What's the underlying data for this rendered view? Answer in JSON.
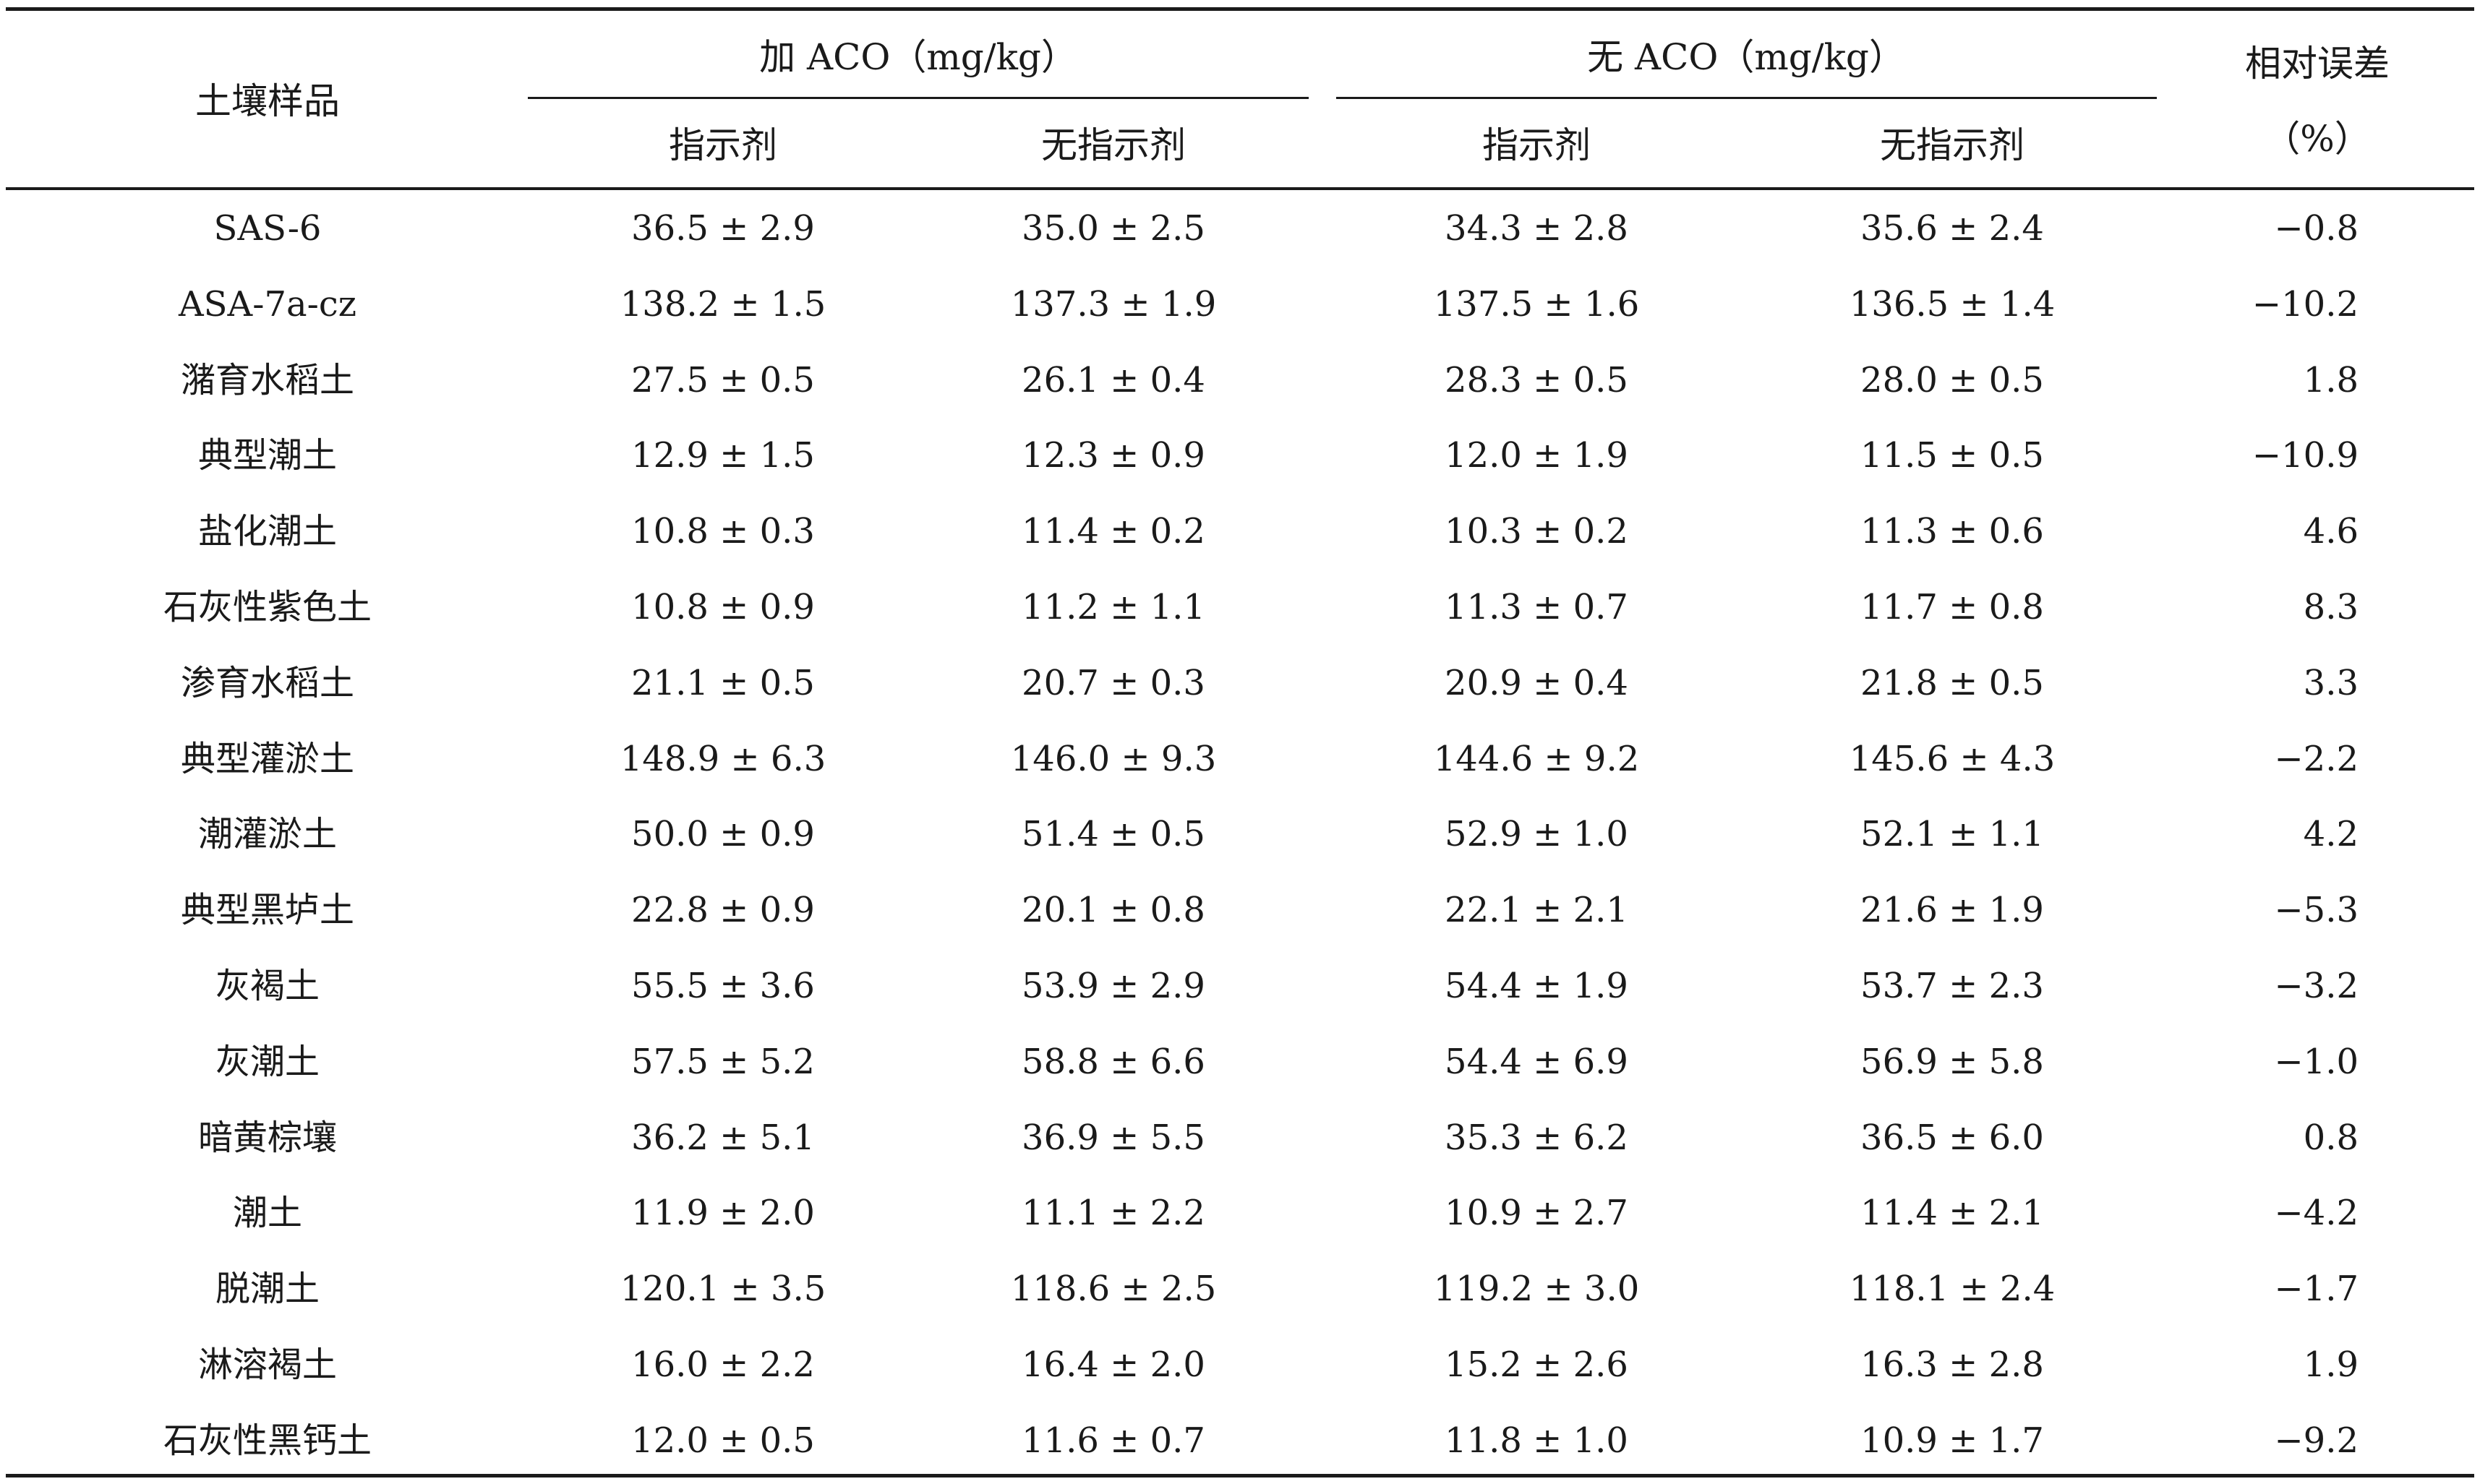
{
  "table": {
    "header": {
      "sample_col": "土壤样品",
      "group_with_aco": "加 ACO（mg/kg）",
      "group_without_aco": "无 ACO（mg/kg）",
      "sub_indicator": "指示剂",
      "sub_no_indicator": "无指示剂",
      "relative_error_line1": "相对误差",
      "relative_error_line2": "（%）"
    },
    "rows": [
      {
        "name": "SAS-6",
        "a_ind": "36.5 ± 2.9",
        "a_no": "35.0 ± 2.5",
        "b_ind": "34.3 ± 2.8",
        "b_no": "35.6 ± 2.4",
        "err": "−0.8"
      },
      {
        "name": "ASA-7a-cz",
        "a_ind": "138.2 ± 1.5",
        "a_no": "137.3 ± 1.9",
        "b_ind": "137.5 ± 1.6",
        "b_no": "136.5 ± 1.4",
        "err": "−10.2"
      },
      {
        "name": "潴育水稻土",
        "a_ind": "27.5 ± 0.5",
        "a_no": "26.1 ± 0.4",
        "b_ind": "28.3 ± 0.5",
        "b_no": "28.0 ± 0.5",
        "err": "1.8"
      },
      {
        "name": "典型潮土",
        "a_ind": "12.9 ± 1.5",
        "a_no": "12.3 ± 0.9",
        "b_ind": "12.0 ± 1.9",
        "b_no": "11.5 ± 0.5",
        "err": "−10.9"
      },
      {
        "name": "盐化潮土",
        "a_ind": "10.8 ± 0.3",
        "a_no": "11.4 ± 0.2",
        "b_ind": "10.3 ± 0.2",
        "b_no": "11.3 ± 0.6",
        "err": "4.6"
      },
      {
        "name": "石灰性紫色土",
        "a_ind": "10.8 ± 0.9",
        "a_no": "11.2 ± 1.1",
        "b_ind": "11.3 ± 0.7",
        "b_no": "11.7 ± 0.8",
        "err": "8.3"
      },
      {
        "name": "渗育水稻土",
        "a_ind": "21.1 ± 0.5",
        "a_no": "20.7 ± 0.3",
        "b_ind": "20.9 ± 0.4",
        "b_no": "21.8 ± 0.5",
        "err": "3.3"
      },
      {
        "name": "典型灌淤土",
        "a_ind": "148.9 ± 6.3",
        "a_no": "146.0 ± 9.3",
        "b_ind": "144.6 ± 9.2",
        "b_no": "145.6 ± 4.3",
        "err": "−2.2"
      },
      {
        "name": "潮灌淤土",
        "a_ind": "50.0 ± 0.9",
        "a_no": "51.4 ± 0.5",
        "b_ind": "52.9 ± 1.0",
        "b_no": "52.1 ± 1.1",
        "err": "4.2"
      },
      {
        "name": "典型黑垆土",
        "a_ind": "22.8 ± 0.9",
        "a_no": "20.1 ± 0.8",
        "b_ind": "22.1 ± 2.1",
        "b_no": "21.6 ± 1.9",
        "err": "−5.3"
      },
      {
        "name": "灰褐土",
        "a_ind": "55.5 ± 3.6",
        "a_no": "53.9 ± 2.9",
        "b_ind": "54.4 ± 1.9",
        "b_no": "53.7 ± 2.3",
        "err": "−3.2"
      },
      {
        "name": "灰潮土",
        "a_ind": "57.5 ± 5.2",
        "a_no": "58.8 ± 6.6",
        "b_ind": "54.4 ± 6.9",
        "b_no": "56.9 ± 5.8",
        "err": "−1.0"
      },
      {
        "name": "暗黄棕壤",
        "a_ind": "36.2 ± 5.1",
        "a_no": "36.9 ± 5.5",
        "b_ind": "35.3 ± 6.2",
        "b_no": "36.5 ± 6.0",
        "err": "0.8"
      },
      {
        "name": "潮土",
        "a_ind": "11.9 ± 2.0",
        "a_no": "11.1 ± 2.2",
        "b_ind": "10.9 ± 2.7",
        "b_no": "11.4 ± 2.1",
        "err": "−4.2"
      },
      {
        "name": "脱潮土",
        "a_ind": "120.1 ± 3.5",
        "a_no": "118.6 ± 2.5",
        "b_ind": "119.2 ± 3.0",
        "b_no": "118.1 ± 2.4",
        "err": "−1.7"
      },
      {
        "name": "淋溶褐土",
        "a_ind": "16.0 ± 2.2",
        "a_no": "16.4 ± 2.0",
        "b_ind": "15.2 ± 2.6",
        "b_no": "16.3 ± 2.8",
        "err": "1.9"
      },
      {
        "name": "石灰性黑钙土",
        "a_ind": "12.0 ± 0.5",
        "a_no": "11.6 ± 0.7",
        "b_ind": "11.8 ± 1.0",
        "b_no": "10.9 ± 1.7",
        "err": "−9.2"
      }
    ]
  }
}
